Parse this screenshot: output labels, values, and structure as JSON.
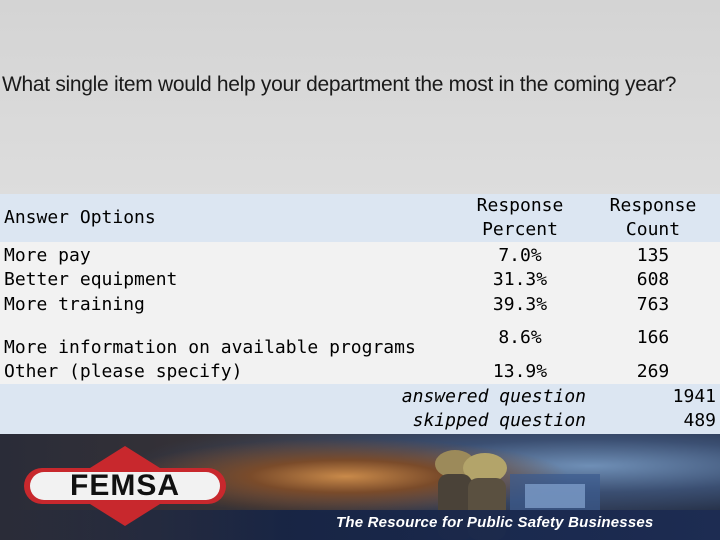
{
  "question": "What single item would help your department the most in the coming year?",
  "table": {
    "header": {
      "answer_options": "Answer Options",
      "response_percent": "Response Percent",
      "response_count": "Response Count"
    },
    "rows": [
      {
        "option": "More pay",
        "percent": "7.0%",
        "count": "135"
      },
      {
        "option": "Better equipment",
        "percent": "31.3%",
        "count": "608"
      },
      {
        "option": "More training",
        "percent": "39.3%",
        "count": "763"
      },
      {
        "option": "More information on available programs",
        "percent": "8.6%",
        "count": "166"
      },
      {
        "option": "Other (please specify)",
        "percent": "13.9%",
        "count": "269"
      }
    ],
    "summary": {
      "answered_label": "answered question",
      "answered_value": "1941",
      "skipped_label": "skipped question",
      "skipped_value": "489"
    }
  },
  "banner": {
    "logo_text": "FEMSA",
    "tagline": "The Resource for Public Safety Businesses",
    "colors": {
      "logo_red": "#c8282d",
      "tagline_bar": "#1d2c52"
    }
  }
}
